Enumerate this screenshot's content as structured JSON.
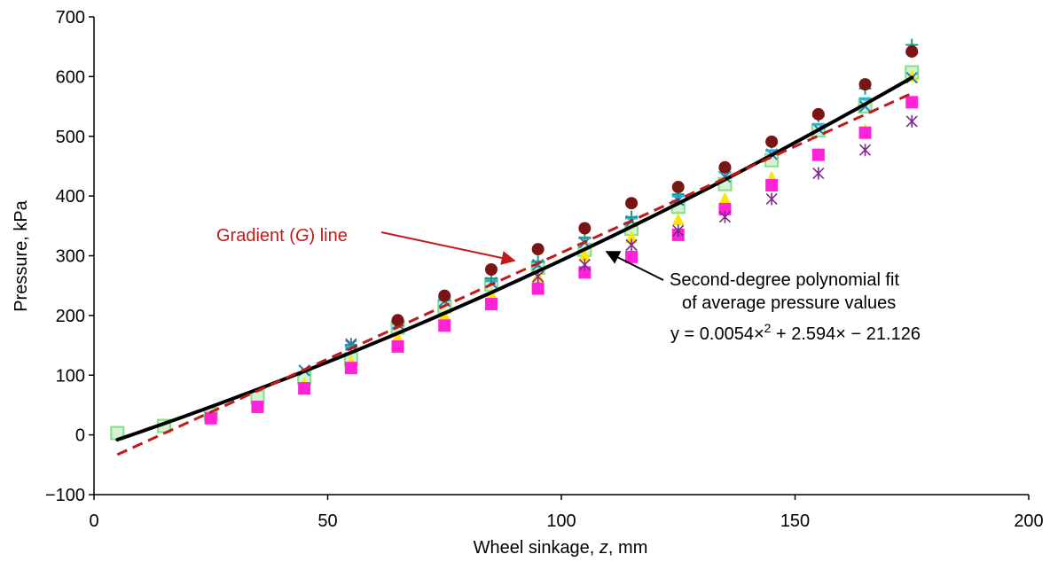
{
  "chart_data": {
    "type": "scatter",
    "xlabel_parts": [
      "Wheel sinkage, ",
      "z",
      ", mm"
    ],
    "ylabel": "Pressure, kPa",
    "xlim": [
      0,
      200
    ],
    "ylim": [
      -100,
      700
    ],
    "x_ticks": [
      0,
      50,
      100,
      150,
      200
    ],
    "y_ticks": [
      -100,
      0,
      100,
      200,
      300,
      400,
      500,
      600,
      700
    ],
    "y_tick_labels": [
      "−100",
      "0",
      "100",
      "200",
      "300",
      "400",
      "500",
      "600",
      "700"
    ],
    "grid": false,
    "x": [
      5,
      15,
      25,
      35,
      45,
      55,
      65,
      75,
      85,
      95,
      105,
      115,
      125,
      135,
      145,
      155,
      165,
      175
    ],
    "series": [
      {
        "marker": "circle",
        "color": "#7b1414",
        "values": [
          null,
          null,
          null,
          null,
          null,
          null,
          192,
          233,
          277,
          311,
          346,
          388,
          415,
          448,
          491,
          537,
          587,
          642
        ]
      },
      {
        "marker": "plus",
        "color": "#1f9a8c",
        "values": [
          null,
          null,
          null,
          null,
          null,
          151,
          190,
          230,
          262,
          290,
          330,
          365,
          403,
          445,
          490,
          534,
          580,
          653
        ]
      },
      {
        "marker": "dash",
        "color": "#22b5e0",
        "values": [
          null,
          null,
          null,
          null,
          null,
          148,
          188,
          226,
          258,
          290,
          330,
          363,
          400,
          440,
          476,
          520,
          563,
          640
        ]
      },
      {
        "marker": "x",
        "color": "#1f7fbf",
        "values": [
          null,
          null,
          null,
          null,
          108,
          150,
          186,
          224,
          255,
          285,
          322,
          358,
          393,
          432,
          470,
          512,
          550,
          598
        ]
      },
      {
        "marker": "triangle",
        "color": "#ffe600",
        "values": [
          null,
          null,
          null,
          null,
          85,
          122,
          163,
          200,
          235,
          265,
          300,
          330,
          360,
          395,
          430,
          470,
          510,
          600
        ]
      },
      {
        "marker": "asterisk",
        "color": "#7a2a8a",
        "values": [
          null,
          null,
          null,
          null,
          null,
          152,
          null,
          null,
          null,
          265,
          285,
          318,
          342,
          365,
          395,
          438,
          477,
          525
        ]
      },
      {
        "marker": "square",
        "color": "#ff22d8",
        "values": [
          null,
          null,
          28,
          47,
          78,
          112,
          148,
          183,
          219,
          245,
          272,
          298,
          335,
          378,
          418,
          469,
          506,
          557
        ]
      },
      {
        "marker": "open-square",
        "color": "#82e085",
        "values": [
          3,
          15,
          35,
          63,
          95,
          127,
          180,
          215,
          252,
          280,
          310,
          345,
          382,
          420,
          460,
          510,
          550,
          607
        ]
      }
    ],
    "fit_curve": {
      "a": 0.0054,
      "b": 2.594,
      "c": -21.126,
      "x_range": [
        5,
        175
      ],
      "color": "#000000"
    },
    "gradient_line": {
      "x": [
        5,
        175
      ],
      "y": [
        -33,
        572
      ],
      "color": "#c01a1a"
    },
    "annotations": {
      "gradient_label_parts": [
        "Gradient (",
        "G",
        ") line"
      ],
      "fit_label_line1": "Second-degree polynomial fit",
      "fit_label_line2": "of average pressure values",
      "equation_prefix": "y = 0.0054×",
      "equation_exp": "2",
      "equation_suffix": " + 2.594× − 21.126"
    }
  }
}
